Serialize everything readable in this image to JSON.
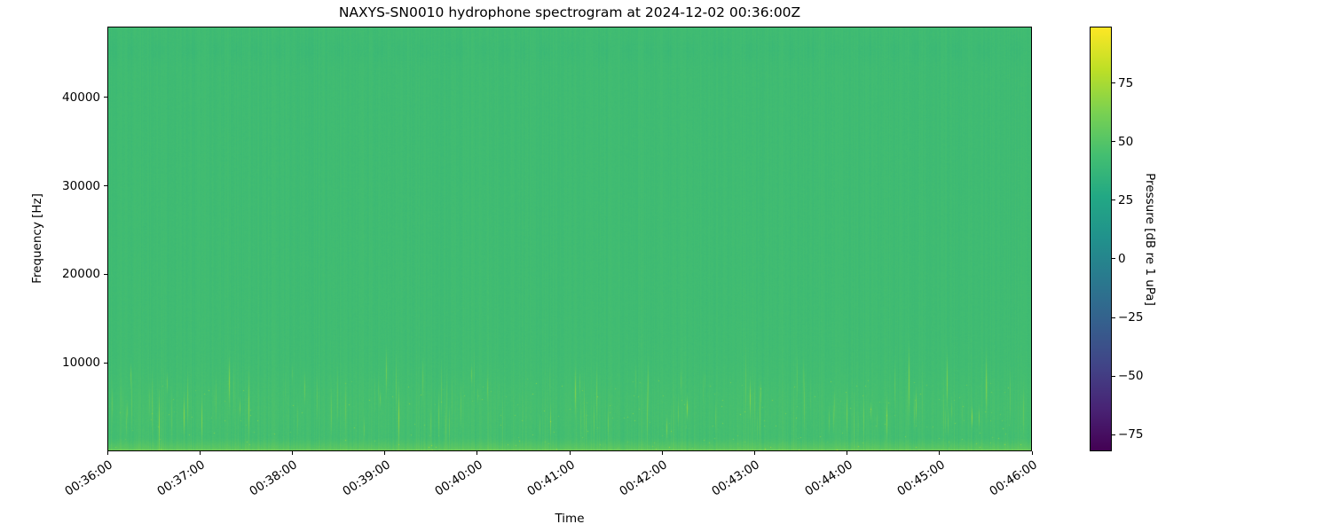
{
  "figure": {
    "title": "NAXYS-SN0010 hydrophone spectrogram at 2024-12-02 00:36:00Z",
    "background_color": "#ffffff"
  },
  "axes": {
    "xlabel": "Time",
    "ylabel": "Frequency [Hz]",
    "x_tick_labels": [
      "00:36:00",
      "00:37:00",
      "00:38:00",
      "00:39:00",
      "00:40:00",
      "00:41:00",
      "00:42:00",
      "00:43:00",
      "00:44:00",
      "00:45:00",
      "00:46:00"
    ],
    "y_tick_labels": [
      "10000",
      "20000",
      "30000",
      "40000"
    ],
    "y_tick_values": [
      10000,
      20000,
      30000,
      40000
    ],
    "y_range_hz": [
      0,
      48000
    ]
  },
  "colorbar": {
    "label": "Pressure [dB re 1 uPa]",
    "tick_labels": [
      "75",
      "50",
      "25",
      "0",
      "−25",
      "−50",
      "−75"
    ],
    "tick_values": [
      75,
      50,
      25,
      0,
      -25,
      -50,
      -75
    ],
    "colormap": "viridis",
    "gradient_stops_top_to_bottom": [
      "#fde725",
      "#bddf26",
      "#7ad151",
      "#44bf70",
      "#22a884",
      "#21918c",
      "#2a788e",
      "#355f8d",
      "#414487",
      "#482475",
      "#440154"
    ]
  },
  "chart_data": {
    "type": "heatmap",
    "subtype": "spectrogram",
    "title": "NAXYS-SN0010 hydrophone spectrogram at 2024-12-02 00:36:00Z",
    "xlabel": "Time",
    "ylabel": "Frequency [Hz]",
    "x_tick_labels": [
      "00:36:00",
      "00:37:00",
      "00:38:00",
      "00:39:00",
      "00:40:00",
      "00:41:00",
      "00:42:00",
      "00:43:00",
      "00:44:00",
      "00:45:00",
      "00:46:00"
    ],
    "x_range": [
      "00:36:00",
      "00:46:00"
    ],
    "x_span_seconds": 600,
    "y_range_hz": [
      0,
      48000
    ],
    "y_tick_values": [
      10000,
      20000,
      30000,
      40000
    ],
    "colormap": "viridis",
    "colorbar_label": "Pressure [dB re 1 uPa]",
    "colorbar_tick_values": [
      75,
      50,
      25,
      0,
      -25,
      -50,
      -75
    ],
    "value_range_db": [
      -82,
      99
    ],
    "legend": "none",
    "grid": false,
    "summary_levels_db": {
      "background_broadband": 42.5,
      "band_levels": [
        {
          "band_hz": [
            0,
            1500
          ],
          "typical_db": 52,
          "note": "bright yellow-green band at lowest frequencies, ~60 dB at 0 Hz edge"
        },
        {
          "band_hz": [
            1500,
            8000
          ],
          "typical_db": 45,
          "transient_peaks_db": 70,
          "note": "densest vertical transient streaks, occasional yellow speckles"
        },
        {
          "band_hz": [
            8000,
            16000
          ],
          "typical_db": 44,
          "note": "moderate vertical striping"
        },
        {
          "band_hz": [
            16000,
            44000
          ],
          "typical_db": 42,
          "note": "nearly uniform green, faint columnar texture"
        },
        {
          "band_hz": [
            44000,
            48000
          ],
          "typical_db": 41,
          "note": "faint darker wavy/scalloped band near 45 kHz"
        }
      ],
      "texture": "thin vertical transient streaks spanning full duration, strongest below 16 kHz"
    },
    "render": {
      "seed": 1337,
      "base_db": 42.5
    }
  }
}
